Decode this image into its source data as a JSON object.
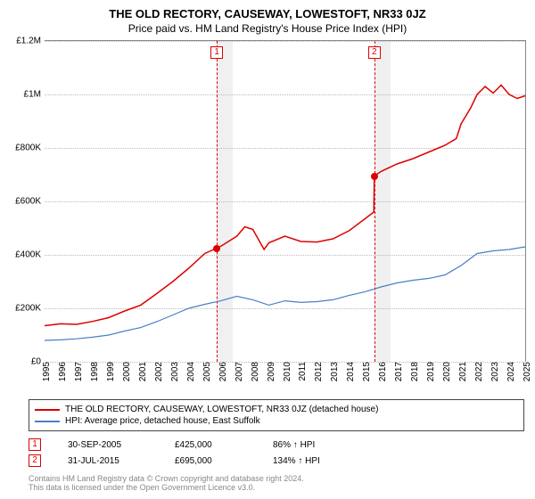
{
  "title": "THE OLD RECTORY, CAUSEWAY, LOWESTOFT, NR33 0JZ",
  "subtitle": "Price paid vs. HM Land Registry's House Price Index (HPI)",
  "chart": {
    "type": "line",
    "background_color": "#ffffff",
    "grid_color": "#bbbbbb",
    "axis_color": "#888888",
    "band_color": "#f0f0f0",
    "label_fontsize": 10,
    "title_fontsize": 13,
    "x": {
      "min": 1995,
      "max": 2025,
      "ticks": [
        1995,
        1996,
        1997,
        1998,
        1999,
        2000,
        2001,
        2002,
        2003,
        2004,
        2005,
        2006,
        2007,
        2008,
        2009,
        2010,
        2011,
        2012,
        2013,
        2014,
        2015,
        2016,
        2017,
        2018,
        2019,
        2020,
        2021,
        2022,
        2023,
        2024,
        2025
      ]
    },
    "y": {
      "min": 0,
      "max": 1200000,
      "ticks": [
        {
          "v": 0,
          "label": "£0"
        },
        {
          "v": 200000,
          "label": "£200K"
        },
        {
          "v": 400000,
          "label": "£400K"
        },
        {
          "v": 600000,
          "label": "£600K"
        },
        {
          "v": 800000,
          "label": "£800K"
        },
        {
          "v": 1000000,
          "label": "£1M"
        },
        {
          "v": 1200000,
          "label": "£1.2M"
        }
      ]
    },
    "series": [
      {
        "name": "THE OLD RECTORY, CAUSEWAY, LOWESTOFT, NR33 0JZ (detached house)",
        "color": "#dd0000",
        "width": 1.5,
        "data": [
          [
            1995,
            135000
          ],
          [
            1996,
            142000
          ],
          [
            1997,
            140000
          ],
          [
            1998,
            151000
          ],
          [
            1999,
            165000
          ],
          [
            2000,
            190000
          ],
          [
            2001,
            212000
          ],
          [
            2002,
            255000
          ],
          [
            2003,
            300000
          ],
          [
            2004,
            350000
          ],
          [
            2005,
            405000
          ],
          [
            2005.75,
            425000
          ],
          [
            2006,
            432000
          ],
          [
            2007,
            470000
          ],
          [
            2007.5,
            505000
          ],
          [
            2008,
            495000
          ],
          [
            2008.7,
            420000
          ],
          [
            2009,
            445000
          ],
          [
            2010,
            470000
          ],
          [
            2011,
            450000
          ],
          [
            2012,
            448000
          ],
          [
            2013,
            460000
          ],
          [
            2014,
            490000
          ],
          [
            2015,
            535000
          ],
          [
            2015.55,
            560000
          ],
          [
            2015.58,
            695000
          ],
          [
            2016,
            712000
          ],
          [
            2017,
            740000
          ],
          [
            2018,
            760000
          ],
          [
            2019,
            785000
          ],
          [
            2020,
            810000
          ],
          [
            2020.7,
            835000
          ],
          [
            2021,
            890000
          ],
          [
            2021.6,
            950000
          ],
          [
            2022,
            1000000
          ],
          [
            2022.5,
            1030000
          ],
          [
            2023,
            1005000
          ],
          [
            2023.5,
            1035000
          ],
          [
            2024,
            1000000
          ],
          [
            2024.5,
            985000
          ],
          [
            2025,
            995000
          ]
        ]
      },
      {
        "name": "HPI: Average price, detached house, East Suffolk",
        "color": "#4a7fc5",
        "width": 1.2,
        "data": [
          [
            1995,
            80000
          ],
          [
            1996,
            82000
          ],
          [
            1997,
            86000
          ],
          [
            1998,
            92000
          ],
          [
            1999,
            100000
          ],
          [
            2000,
            115000
          ],
          [
            2001,
            128000
          ],
          [
            2002,
            150000
          ],
          [
            2003,
            175000
          ],
          [
            2004,
            200000
          ],
          [
            2005,
            215000
          ],
          [
            2006,
            228000
          ],
          [
            2007,
            245000
          ],
          [
            2008,
            232000
          ],
          [
            2009,
            212000
          ],
          [
            2010,
            228000
          ],
          [
            2011,
            222000
          ],
          [
            2012,
            225000
          ],
          [
            2013,
            232000
          ],
          [
            2014,
            248000
          ],
          [
            2015,
            262000
          ],
          [
            2016,
            280000
          ],
          [
            2017,
            295000
          ],
          [
            2018,
            305000
          ],
          [
            2019,
            312000
          ],
          [
            2020,
            325000
          ],
          [
            2021,
            360000
          ],
          [
            2022,
            405000
          ],
          [
            2023,
            415000
          ],
          [
            2024,
            420000
          ],
          [
            2025,
            430000
          ]
        ]
      }
    ],
    "markers": [
      {
        "idx": 1,
        "x": 2005.75,
        "y": 425000,
        "band_start": 2005.75,
        "band_end": 2006.75
      },
      {
        "idx": 2,
        "x": 2015.58,
        "y": 695000,
        "band_start": 2015.58,
        "band_end": 2016.58
      }
    ]
  },
  "legend": [
    {
      "color": "#dd0000",
      "label": "THE OLD RECTORY, CAUSEWAY, LOWESTOFT, NR33 0JZ (detached house)"
    },
    {
      "color": "#4a7fc5",
      "label": "HPI: Average price, detached house, East Suffolk"
    }
  ],
  "transactions": [
    {
      "idx": "1",
      "date": "30-SEP-2005",
      "price": "£425,000",
      "hpi": "86% ↑ HPI"
    },
    {
      "idx": "2",
      "date": "31-JUL-2015",
      "price": "£695,000",
      "hpi": "134% ↑ HPI"
    }
  ],
  "footer_line1": "Contains HM Land Registry data © Crown copyright and database right 2024.",
  "footer_line2": "This data is licensed under the Open Government Licence v3.0."
}
